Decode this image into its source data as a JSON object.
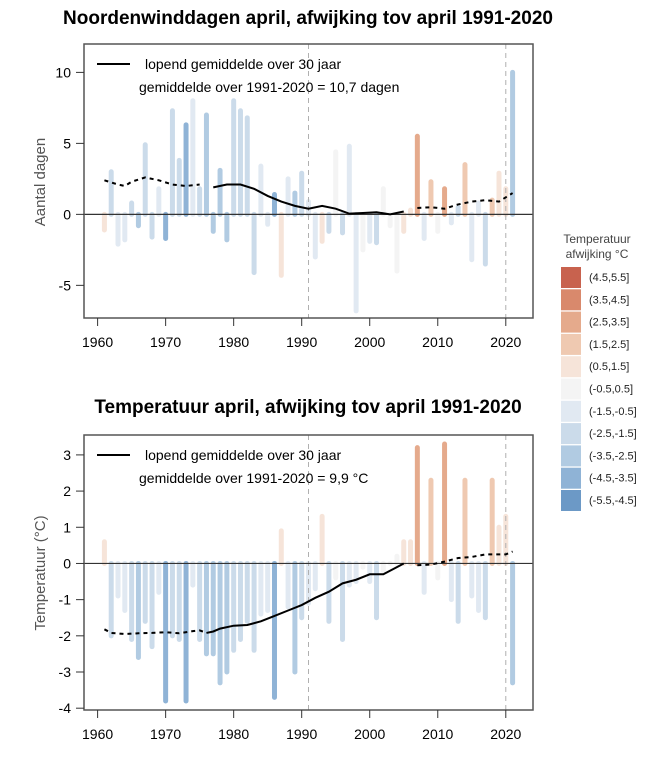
{
  "legend_scale": {
    "title_line1": "Temperatuur",
    "title_line2": "afwijking °C",
    "items": [
      {
        "label": "(4.5,5.5]",
        "color": "#c8624e"
      },
      {
        "label": "(3.5,4.5]",
        "color": "#d9896c"
      },
      {
        "label": "(2.5,3.5]",
        "color": "#e5aa8c"
      },
      {
        "label": "(1.5,2.5]",
        "color": "#efc9b1"
      },
      {
        "label": "(0.5,1.5]",
        "color": "#f6e4d9"
      },
      {
        "label": "(-0.5,0.5]",
        "color": "#f4f4f4"
      },
      {
        "label": "(-1.5,-0.5]",
        "color": "#e1e9f2"
      },
      {
        "label": "(-2.5,-1.5]",
        "color": "#cbdbea"
      },
      {
        "label": "(-3.5,-2.5]",
        "color": "#b1cbe2"
      },
      {
        "label": "(-4.5,-3.5]",
        "color": "#8fb3d6"
      },
      {
        "label": "(-5.5,-4.5]",
        "color": "#6c99c6"
      }
    ]
  },
  "chart_data": [
    {
      "type": "bar",
      "title": "Noordenwinddagen april, afwijking tov april 1991-2020",
      "xlabel": "",
      "ylabel": "Aantal dagen",
      "xlim": [
        1958,
        2024
      ],
      "ylim": [
        -7.3,
        12
      ],
      "xticks": [
        "1960",
        "1970",
        "1980",
        "1990",
        "2000",
        "2010",
        "2020"
      ],
      "yticks": [
        "-5",
        "0",
        "5",
        "10"
      ],
      "ytick_values": [
        -5,
        0,
        5,
        10
      ],
      "reference_lines": [
        1991,
        2020
      ],
      "legend": {
        "line_label": "lopend gemiddelde over 30 jaar",
        "mean_label": "gemiddelde over 1991-2020 = 10,7 dagen",
        "placement": "top-left"
      },
      "years": [
        1961,
        1962,
        1963,
        1964,
        1965,
        1966,
        1967,
        1968,
        1969,
        1970,
        1971,
        1972,
        1973,
        1974,
        1975,
        1976,
        1977,
        1978,
        1979,
        1980,
        1981,
        1982,
        1983,
        1984,
        1985,
        1986,
        1987,
        1988,
        1989,
        1990,
        1991,
        1992,
        1993,
        1994,
        1995,
        1996,
        1997,
        1998,
        1999,
        2000,
        2001,
        2002,
        2003,
        2004,
        2005,
        2006,
        2007,
        2008,
        2009,
        2010,
        2011,
        2012,
        2013,
        2014,
        2015,
        2016,
        2017,
        2018,
        2019,
        2020,
        2021
      ],
      "values": [
        -1.1,
        3.0,
        -2.1,
        -1.8,
        0.8,
        -0.8,
        4.9,
        -1.6,
        1.8,
        -1.7,
        7.3,
        3.8,
        6.3,
        8.0,
        1.8,
        7.0,
        -1.2,
        3.1,
        -1.8,
        8.0,
        7.3,
        6.8,
        -4.1,
        3.4,
        -0.7,
        1.4,
        -4.3,
        2.5,
        1.5,
        2.9,
        0.9,
        -3.0,
        -1.9,
        -1.2,
        4.4,
        -1.3,
        4.8,
        -6.8,
        -2.5,
        -1.9,
        -2.0,
        1.8,
        -0.8,
        -4.0,
        -1.2,
        0.3,
        5.5,
        -1.7,
        2.3,
        -1.2,
        1.8,
        -0.6,
        0.5,
        3.5,
        -3.2,
        0.8,
        -3.5,
        1.0,
        2.9,
        1.8,
        10.0
      ],
      "temp_anomaly": [
        0.6,
        -2.0,
        -0.9,
        -1.3,
        -2.1,
        -2.6,
        -1.6,
        -2.3,
        -0.8,
        -3.8,
        -2.0,
        -2.1,
        -3.8,
        -0.6,
        -2.1,
        -2.5,
        -2.5,
        -3.3,
        -3.0,
        -2.4,
        -2.1,
        -1.6,
        -2.4,
        -1.4,
        -1.3,
        -3.7,
        0.9,
        -1.2,
        -3.0,
        -1.5,
        -1.1,
        -0.7,
        1.3,
        -1.6,
        -0.4,
        -2.1,
        -0.6,
        -0.5,
        -0.1,
        -0.5,
        -1.5,
        -0.2,
        0.0,
        0.2,
        0.6,
        0.6,
        3.2,
        -0.8,
        2.3,
        -0.4,
        3.3,
        -1.0,
        -1.6,
        2.3,
        -0.9,
        -1.3,
        -1.5,
        2.3,
        1.0,
        1.3,
        -3.3
      ],
      "running_mean": {
        "years": [
          1961,
          1963,
          1964,
          1965,
          1967,
          1969,
          1971,
          1973,
          1975,
          1977,
          1979,
          1981,
          1983,
          1985,
          1987,
          1989,
          1991,
          1993,
          1995,
          1997,
          1999,
          2001,
          2003,
          2005,
          2007,
          2009,
          2011,
          2013,
          2015,
          2017,
          2019,
          2021
        ],
        "values": [
          2.4,
          2.1,
          2.0,
          2.3,
          2.6,
          2.4,
          2.1,
          2.0,
          2.1,
          1.9,
          2.1,
          2.1,
          1.8,
          1.3,
          0.9,
          0.6,
          0.4,
          0.6,
          0.4,
          0.05,
          0.1,
          0.15,
          0.0,
          0.2,
          0.45,
          0.5,
          0.4,
          0.7,
          0.9,
          1.0,
          0.9,
          1.5
        ],
        "solid_from": 1976,
        "solid_to": 2006
      }
    },
    {
      "type": "bar",
      "title": "Temperatuur april, afwijking tov april 1991-2020",
      "xlabel": "",
      "ylabel": "Temperatuur (°C)",
      "xlim": [
        1958,
        2024
      ],
      "ylim": [
        -4.05,
        3.55
      ],
      "xticks": [
        "1960",
        "1970",
        "1980",
        "1990",
        "2000",
        "2010",
        "2020"
      ],
      "yticks": [
        "-4",
        "-3",
        "-2",
        "-1",
        "0",
        "1",
        "2",
        "3"
      ],
      "ytick_values": [
        -4,
        -3,
        -2,
        -1,
        0,
        1,
        2,
        3
      ],
      "reference_lines": [
        1991,
        2020
      ],
      "legend": {
        "line_label": "lopend gemiddelde over 30 jaar",
        "mean_label": "gemiddelde over 1991-2020 = 9,9 °C",
        "placement": "top-left"
      },
      "years": [
        1961,
        1962,
        1963,
        1964,
        1965,
        1966,
        1967,
        1968,
        1969,
        1970,
        1971,
        1972,
        1973,
        1974,
        1975,
        1976,
        1977,
        1978,
        1979,
        1980,
        1981,
        1982,
        1983,
        1984,
        1985,
        1986,
        1987,
        1988,
        1989,
        1990,
        1991,
        1992,
        1993,
        1994,
        1995,
        1996,
        1997,
        1998,
        1999,
        2000,
        2001,
        2002,
        2003,
        2004,
        2005,
        2006,
        2007,
        2008,
        2009,
        2010,
        2011,
        2012,
        2013,
        2014,
        2015,
        2016,
        2017,
        2018,
        2019,
        2020,
        2021
      ],
      "values": [
        0.6,
        -2.0,
        -0.9,
        -1.3,
        -2.1,
        -2.6,
        -1.6,
        -2.3,
        -0.8,
        -3.8,
        -2.0,
        -2.1,
        -3.8,
        -0.6,
        -2.1,
        -2.5,
        -2.5,
        -3.3,
        -3.0,
        -2.4,
        -2.1,
        -1.6,
        -2.4,
        -1.4,
        -1.3,
        -3.7,
        0.9,
        -1.2,
        -3.0,
        -1.5,
        -1.1,
        -0.7,
        1.3,
        -1.6,
        -0.4,
        -2.1,
        -0.6,
        -0.5,
        -0.1,
        -0.5,
        -1.5,
        -0.2,
        0.0,
        0.2,
        0.6,
        0.6,
        3.2,
        -0.8,
        2.3,
        -0.4,
        3.3,
        -1.0,
        -1.6,
        2.3,
        -0.9,
        -1.3,
        -1.5,
        2.3,
        1.0,
        1.3,
        -3.3
      ],
      "running_mean": {
        "years": [
          1961,
          1962,
          1964,
          1966,
          1968,
          1970,
          1972,
          1974,
          1975,
          1976,
          1977,
          1978,
          1980,
          1982,
          1984,
          1986,
          1988,
          1990,
          1992,
          1994,
          1996,
          1998,
          2000,
          2002,
          2004,
          2005,
          2007,
          2009,
          2011,
          2013,
          2015,
          2017,
          2019,
          2020,
          2021
        ],
        "values": [
          -1.82,
          -1.92,
          -1.95,
          -1.93,
          -1.92,
          -1.9,
          -1.93,
          -1.87,
          -1.85,
          -1.92,
          -1.88,
          -1.8,
          -1.72,
          -1.7,
          -1.6,
          -1.45,
          -1.3,
          -1.15,
          -0.95,
          -0.78,
          -0.55,
          -0.45,
          -0.3,
          -0.3,
          -0.1,
          0.0,
          -0.05,
          -0.03,
          0.05,
          0.15,
          0.18,
          0.25,
          0.25,
          0.25,
          0.33
        ],
        "solid_from": 1976,
        "solid_to": 2006
      }
    }
  ]
}
